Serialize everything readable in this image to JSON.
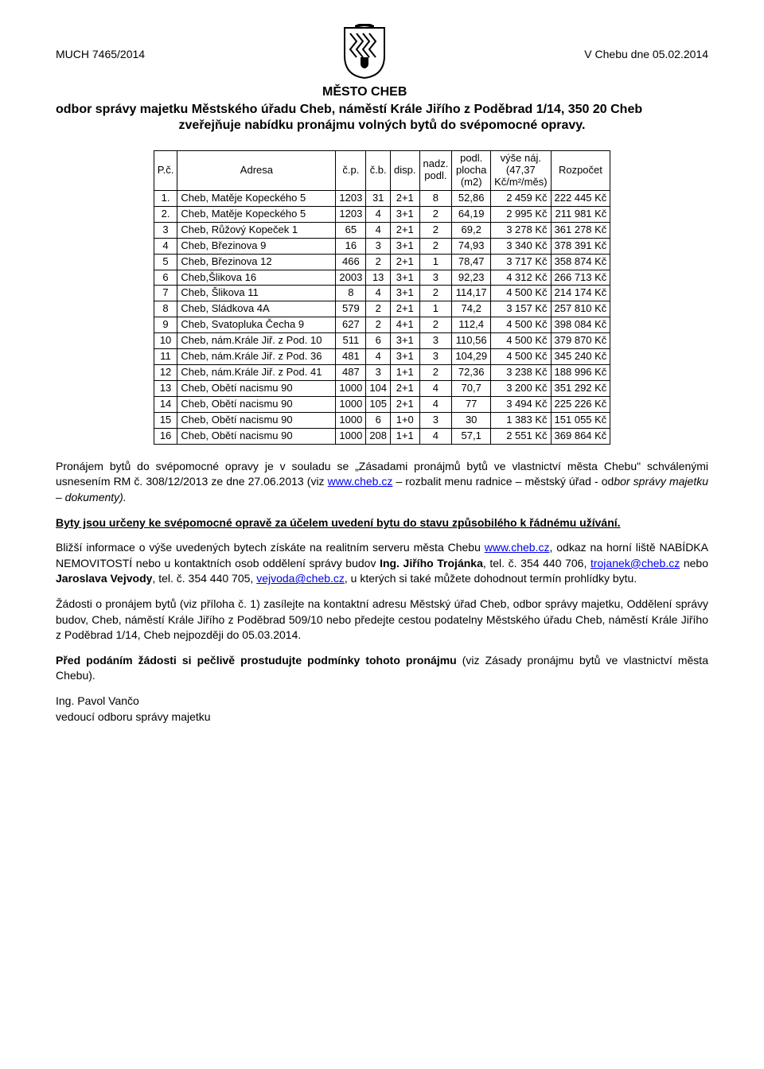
{
  "meta_left": "MUCH 7465/2014",
  "meta_right": "V Chebu dne 05.02.2014",
  "city": "MĚSTO CHEB",
  "heading_line1": "odbor správy majetku Městského úřadu Cheb, náměstí Krále Jiřího z Poděbrad 1/14, 350 20 Cheb",
  "heading_line2": "zveřejňuje nabídku pronájmu volných bytů do svépomocné opravy.",
  "columns": {
    "c1": "P.č.",
    "c2": "Adresa",
    "c3": "č.p.",
    "c4": "č.b.",
    "c5": "disp.",
    "c6_1": "nadz.",
    "c6_2": "podl.",
    "c7_1": "podl.",
    "c7_2": "plocha",
    "c7_3": "(m2)",
    "c8_1": "výše náj.",
    "c8_2": "(47,37",
    "c8_3": "Kč/m²/měs)",
    "c9": "Rozpočet"
  },
  "rows": [
    {
      "n": "1.",
      "addr": "Cheb, Matěje Kopeckého 5",
      "cp": "1203",
      "cb": "31",
      "disp": "2+1",
      "nadz": "8",
      "pl": "52,86",
      "naj": "2 459 Kč",
      "roz": "222 445 Kč"
    },
    {
      "n": "2.",
      "addr": "Cheb, Matěje Kopeckého 5",
      "cp": "1203",
      "cb": "4",
      "disp": "3+1",
      "nadz": "2",
      "pl": "64,19",
      "naj": "2 995 Kč",
      "roz": "211 981 Kč"
    },
    {
      "n": "3",
      "addr": "Cheb, Růžový Kopeček 1",
      "cp": "65",
      "cb": "4",
      "disp": "2+1",
      "nadz": "2",
      "pl": "69,2",
      "naj": "3 278 Kč",
      "roz": "361 278 Kč"
    },
    {
      "n": "4",
      "addr": "Cheb, Březinova 9",
      "cp": "16",
      "cb": "3",
      "disp": "3+1",
      "nadz": "2",
      "pl": "74,93",
      "naj": "3 340 Kč",
      "roz": "378 391 Kč"
    },
    {
      "n": "5",
      "addr": "Cheb, Březinova 12",
      "cp": "466",
      "cb": "2",
      "disp": "2+1",
      "nadz": "1",
      "pl": "78,47",
      "naj": "3 717 Kč",
      "roz": "358 874 Kč"
    },
    {
      "n": "6",
      "addr": "Cheb,Šlikova 16",
      "cp": "2003",
      "cb": "13",
      "disp": "3+1",
      "nadz": "3",
      "pl": "92,23",
      "naj": "4 312 Kč",
      "roz": "266 713 Kč"
    },
    {
      "n": "7",
      "addr": "Cheb, Šlikova 11",
      "cp": "8",
      "cb": "4",
      "disp": "3+1",
      "nadz": "2",
      "pl": "114,17",
      "naj": "4 500 Kč",
      "roz": "214 174 Kč"
    },
    {
      "n": "8",
      "addr": "Cheb, Sládkova 4A",
      "cp": "579",
      "cb": "2",
      "disp": "2+1",
      "nadz": "1",
      "pl": "74,2",
      "naj": "3 157 Kč",
      "roz": "257 810 Kč"
    },
    {
      "n": "9",
      "addr": "Cheb, Svatopluka Čecha 9",
      "cp": "627",
      "cb": "2",
      "disp": "4+1",
      "nadz": "2",
      "pl": "112,4",
      "naj": "4 500 Kč",
      "roz": "398 084 Kč"
    },
    {
      "n": "10",
      "addr": "Cheb, nám.Krále Jiř. z Pod. 10",
      "cp": "511",
      "cb": "6",
      "disp": "3+1",
      "nadz": "3",
      "pl": "110,56",
      "naj": "4 500 Kč",
      "roz": "379 870 Kč"
    },
    {
      "n": "11",
      "addr": "Cheb, nám.Krále Jiř. z Pod. 36",
      "cp": "481",
      "cb": "4",
      "disp": "3+1",
      "nadz": "3",
      "pl": "104,29",
      "naj": "4 500 Kč",
      "roz": "345 240 Kč"
    },
    {
      "n": "12",
      "addr": "Cheb, nám.Krále Jiř. z Pod. 41",
      "cp": "487",
      "cb": "3",
      "disp": "1+1",
      "nadz": "2",
      "pl": "72,36",
      "naj": "3 238 Kč",
      "roz": "188 996 Kč"
    },
    {
      "n": "13",
      "addr": "Cheb, Obětí nacismu 90",
      "cp": "1000",
      "cb": "104",
      "disp": "2+1",
      "nadz": "4",
      "pl": "70,7",
      "naj": "3 200 Kč",
      "roz": "351 292 Kč"
    },
    {
      "n": "14",
      "addr": "Cheb, Obětí nacismu 90",
      "cp": "1000",
      "cb": "105",
      "disp": "2+1",
      "nadz": "4",
      "pl": "77",
      "naj": "3 494 Kč",
      "roz": "225 226 Kč"
    },
    {
      "n": "15",
      "addr": "Cheb, Obětí nacismu 90",
      "cp": "1000",
      "cb": "6",
      "disp": "1+0",
      "nadz": "3",
      "pl": "30",
      "naj": "1 383 Kč",
      "roz": "151 055 Kč"
    },
    {
      "n": "16",
      "addr": "Cheb, Obětí nacismu 90",
      "cp": "1000",
      "cb": "208",
      "disp": "1+1",
      "nadz": "4",
      "pl": "57,1",
      "naj": "2 551 Kč",
      "roz": "369 864 Kč"
    }
  ],
  "p1_a": "Pronájem bytů do svépomocné opravy je v souladu se „Zásadami pronájmů bytů ve vlastnictví města Chebu\" schválenými usnesením RM č. 308/12/2013 ze dne 27.06.2013 (viz ",
  "p1_link1": "www.cheb.cz",
  "p1_b": " – rozbalit menu radnice – městský úřad - od",
  "p1_italic": "bor správy majetku – dokumenty).",
  "p2": "Byty jsou určeny ke svépomocné opravě za účelem uvedení bytu do stavu způsobilého k řádnému užívání.",
  "p3_a": "Bližší informace o výše uvedených bytech získáte na realitním serveru města Chebu ",
  "p3_link1": "www.cheb.cz",
  "p3_b": ", odkaz na horní liště NABÍDKA NEMOVITOSTÍ nebo u kontaktních osob oddělení správy budov ",
  "p3_bold1": "Ing. Jiřího Trojánka",
  "p3_c": ", tel. č. 354 440 706, ",
  "p3_link2": "trojanek@cheb.cz",
  "p3_d": " nebo ",
  "p3_bold2": "Jaroslava Vejvody",
  "p3_e": ", tel. č. 354 440 705, ",
  "p3_link3": "vejvoda@cheb.cz",
  "p3_f": ", u kterých si také můžete dohodnout termín prohlídky bytu.",
  "p4": "Žádosti o pronájem bytů (viz příloha č. 1) zasílejte na kontaktní adresu Městský úřad Cheb, odbor správy majetku, Oddělení správy budov, Cheb, náměstí Krále Jiřího z Poděbrad 509/10 nebo předejte cestou podatelny Městského úřadu Cheb, náměstí Krále Jiřího z Poděbrad 1/14, Cheb nejpozději do 05.03.2014.",
  "p5_bold": "Před podáním žádosti si pečlivě prostudujte podmínky tohoto pronájmu ",
  "p5_rest": "(viz Zásady pronájmu bytů ve vlastnictví města Chebu).",
  "sig1": "Ing. Pavol Vančo",
  "sig2": "vedoucí odboru správy majetku"
}
